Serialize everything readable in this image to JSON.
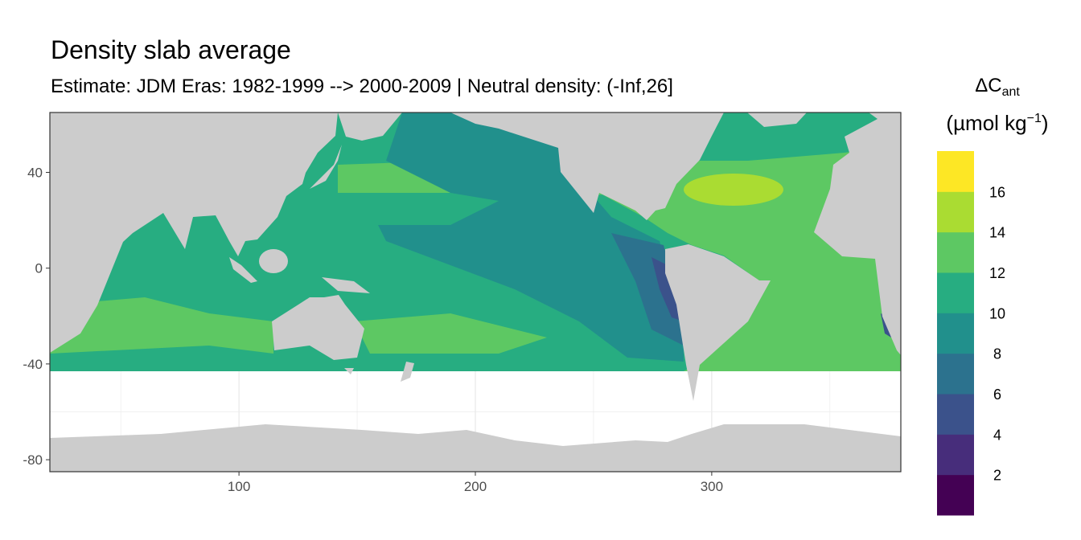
{
  "title": "Density slab average",
  "subtitle": "Estimate: JDM Eras: 1982-1999 --> 2000-2009 | Neutral density: (-Inf,26]",
  "chart_data": {
    "type": "heatmap",
    "title": "Density slab average",
    "subtitle": "Estimate: JDM Eras: 1982-1999 --> 2000-2009 | Neutral density: (-Inf,26]",
    "xlabel": "",
    "ylabel": "",
    "xlim": [
      20,
      380
    ],
    "ylim": [
      -85,
      65
    ],
    "x_ticks": [
      100,
      200,
      300
    ],
    "y_ticks": [
      40,
      0,
      -40,
      -80
    ],
    "grid": true,
    "legend": {
      "title_main": "ΔC",
      "title_sub": "ant",
      "title_units": "(µmol kg",
      "title_exp": "−1",
      "title_close": ")",
      "position": "right",
      "breaks": [
        2,
        4,
        6,
        8,
        10,
        12,
        14,
        16
      ],
      "colors": [
        "#440154",
        "#472D7B",
        "#3B528B",
        "#2C728E",
        "#21908C",
        "#27AD81",
        "#5DC863",
        "#AADC32",
        "#FDE725"
      ]
    },
    "land_color": "#CCCCCC"
  }
}
